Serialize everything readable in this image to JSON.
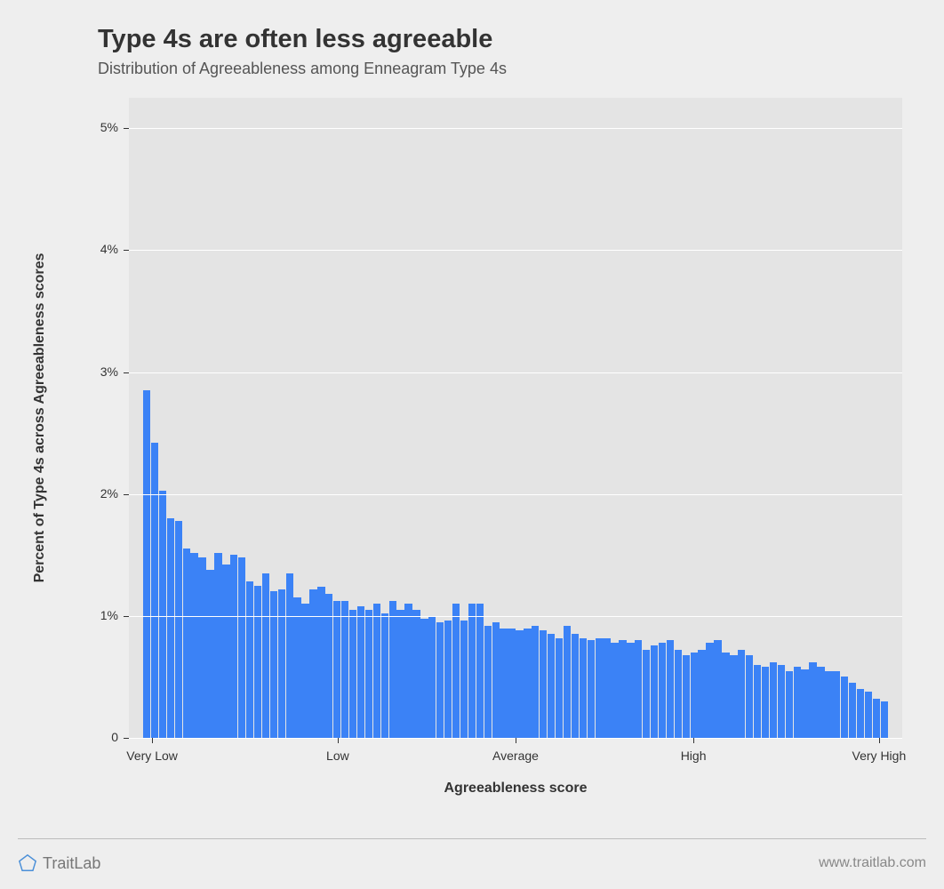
{
  "chart": {
    "type": "histogram",
    "title": "Type 4s are often less agreeable",
    "subtitle": "Distribution of Agreeableness among Enneagram Type 4s",
    "background_color": "#eeeeee",
    "plot_background_color": "#e4e4e4",
    "grid_color": "#ffffff",
    "bar_color": "#3b82f6",
    "title_fontsize": 29,
    "subtitle_fontsize": 18,
    "label_fontsize": 16,
    "tick_fontsize": 14,
    "y_axis": {
      "title": "Percent of Type 4s across Agreeableness scores",
      "min": 0,
      "max": 5.25,
      "ticks": [
        0,
        1,
        2,
        3,
        4,
        5
      ],
      "tick_labels": [
        "0",
        "1%",
        "2%",
        "3%",
        "4%",
        "5%"
      ]
    },
    "x_axis": {
      "title": "Agreeableness score",
      "tick_labels": [
        "Very Low",
        "Low",
        "Average",
        "High",
        "Very High"
      ],
      "tick_positions_pct": [
        3,
        27,
        50,
        73,
        97
      ]
    },
    "bars_area": {
      "left_pct": 1.8,
      "width_pct": 96.4
    },
    "values": [
      2.85,
      2.42,
      2.03,
      1.8,
      1.78,
      1.55,
      1.52,
      1.48,
      1.38,
      1.52,
      1.42,
      1.5,
      1.48,
      1.28,
      1.25,
      1.35,
      1.2,
      1.22,
      1.35,
      1.15,
      1.1,
      1.22,
      1.24,
      1.18,
      1.12,
      1.12,
      1.05,
      1.08,
      1.05,
      1.1,
      1.02,
      1.12,
      1.05,
      1.1,
      1.05,
      0.98,
      1.0,
      0.95,
      0.96,
      1.1,
      0.96,
      1.1,
      1.1,
      0.92,
      0.95,
      0.9,
      0.9,
      0.88,
      0.9,
      0.92,
      0.88,
      0.85,
      0.82,
      0.92,
      0.85,
      0.82,
      0.8,
      0.82,
      0.82,
      0.78,
      0.8,
      0.78,
      0.8,
      0.72,
      0.76,
      0.78,
      0.8,
      0.72,
      0.68,
      0.7,
      0.72,
      0.78,
      0.8,
      0.7,
      0.68,
      0.72,
      0.68,
      0.6,
      0.58,
      0.62,
      0.6,
      0.55,
      0.58,
      0.56,
      0.62,
      0.58,
      0.55,
      0.55,
      0.5,
      0.45,
      0.4,
      0.38,
      0.32,
      0.3
    ]
  },
  "footer": {
    "brand": "TraitLab",
    "brand_color": "#4a8fd8",
    "url": "www.traitlab.com",
    "rule_color": "#bbbbbb"
  }
}
